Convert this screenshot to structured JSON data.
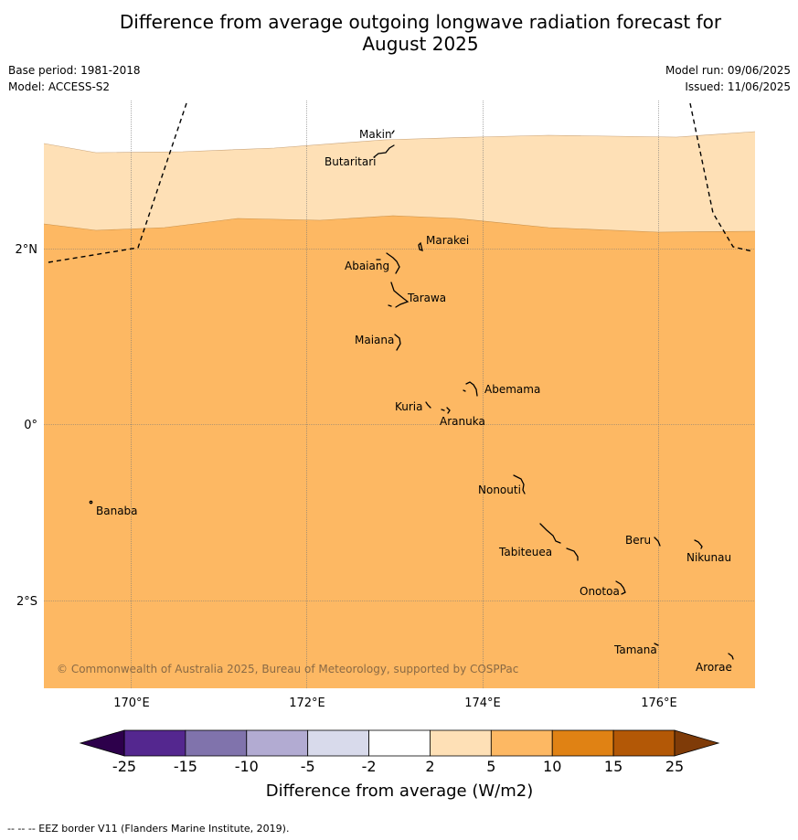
{
  "title_line1": "Difference from average outgoing longwave radiation forecast for",
  "title_line2": "August 2025",
  "meta": {
    "base_period": "Base period: 1981-2018",
    "model": "Model: ACCESS-S2",
    "model_run": "Model run: 09/06/2025",
    "issued": "Issued: 11/06/2025"
  },
  "map": {
    "lat_ticks": [
      "2°N",
      "0°",
      "2°S"
    ],
    "lon_ticks": [
      "170°E",
      "172°E",
      "174°E",
      "176°E"
    ],
    "copyright": "© Commonwealth of Australia 2025, Bureau of Meteorology, supported by COSPPac",
    "islands": [
      "Makin",
      "Butaritari",
      "Marakei",
      "Abaiang",
      "Tarawa",
      "Maiana",
      "Abemama",
      "Kuria",
      "Aranuka",
      "Nonouti",
      "Banaba",
      "Beru",
      "Nikunau",
      "Tabiteuea",
      "Onotoa",
      "Tamana",
      "Arorae"
    ]
  },
  "colorbar": {
    "label": "Difference from average (W/m2)",
    "ticks": [
      "-25",
      "-15",
      "-10",
      "-5",
      "-2",
      "2",
      "5",
      "10",
      "15",
      "25"
    ],
    "colors": [
      "#54278f",
      "#8073ac",
      "#b2abd2",
      "#d8daeb",
      "#ffffff",
      "#fee0b6",
      "#fdb863",
      "#e08214",
      "#b35806"
    ],
    "under_color": "#2d004b",
    "over_color": "#7f3b08"
  },
  "footer": "--  --  -- EEZ border V11 (Flanders Marine Institute, 2019)."
}
